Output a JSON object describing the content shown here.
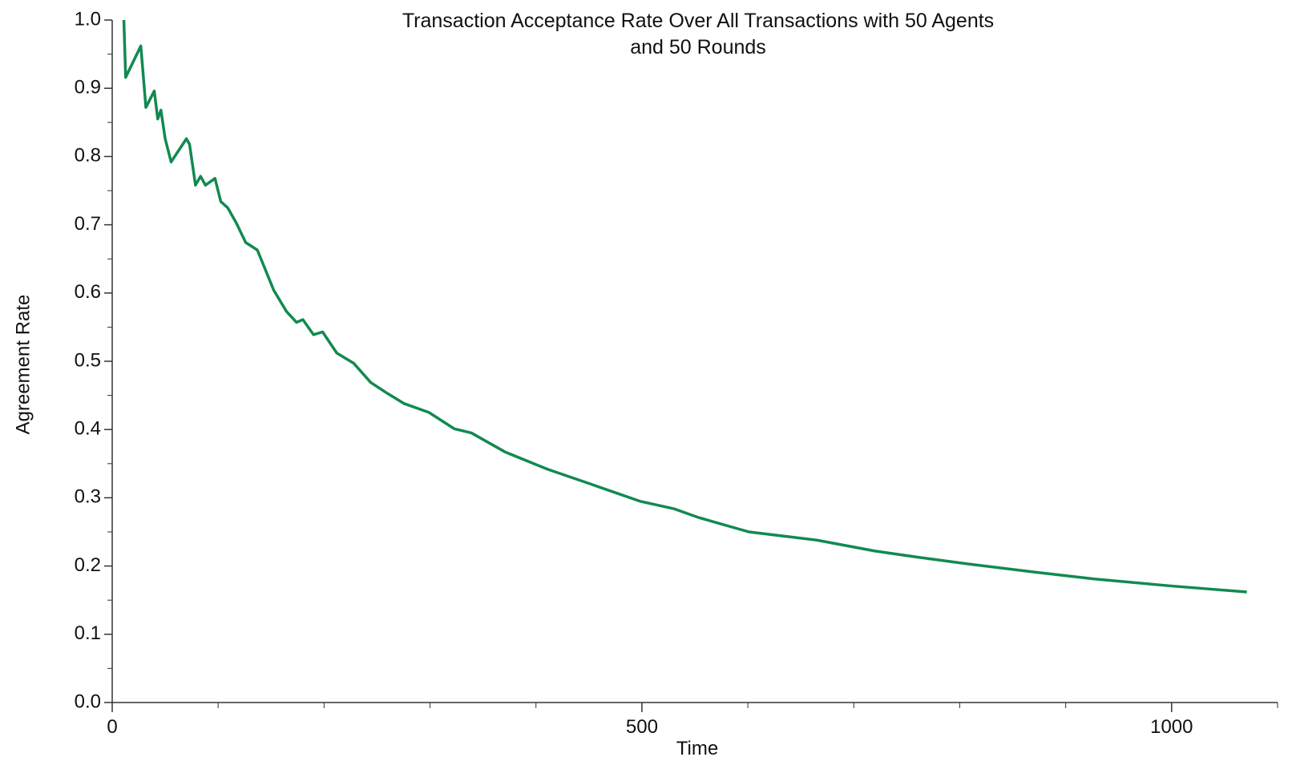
{
  "chart_data": {
    "type": "line",
    "title": "Transaction Acceptance Rate Over All Transactions with 50 Agents and 50 Rounds",
    "x_label": "Time",
    "y_label": "Agreement Rate",
    "xlim": [
      0,
      1100
    ],
    "xticks": [
      0,
      500,
      1000
    ],
    "ylim": [
      0,
      1
    ],
    "yticks": [
      {
        "value": 0,
        "label": "0.0"
      },
      0.1,
      0.2,
      0.3,
      0.4,
      0.5,
      0.6,
      0.7,
      0.8,
      0.9,
      {
        "value": 1,
        "label": "1.0"
      }
    ],
    "grid": false,
    "series": [
      {
        "name": "Agreement Rate",
        "color": "#118a50",
        "x": [
          11,
          12.7,
          27,
          31.8,
          39.7,
          43,
          46,
          50,
          55.6,
          70,
          73,
          78.6,
          83.4,
          88,
          97,
          102.5,
          109,
          117,
          126,
          137,
          152.5,
          164.5,
          174,
          180,
          190,
          198.6,
          212,
          228,
          244,
          259.7,
          275.6,
          299,
          323,
          339,
          371,
          410.6,
          450,
          498,
          530,
          553.6,
          601,
          633,
          665,
          720,
          760,
          807.8,
          871,
          927,
          998,
          1038,
          1071
        ],
        "values": [
          1.0,
          0.916,
          0.962,
          0.872,
          0.896,
          0.855,
          0.868,
          0.826,
          0.792,
          0.826,
          0.818,
          0.758,
          0.771,
          0.758,
          0.768,
          0.734,
          0.725,
          0.703,
          0.674,
          0.663,
          0.604,
          0.573,
          0.557,
          0.561,
          0.539,
          0.543,
          0.512,
          0.497,
          0.469,
          0.453,
          0.438,
          0.425,
          0.401,
          0.395,
          0.367,
          0.342,
          0.321,
          0.295,
          0.284,
          0.271,
          0.25,
          0.244,
          0.238,
          0.222,
          0.213,
          0.203,
          0.191,
          0.181,
          0.171,
          0.166,
          0.162
        ]
      }
    ]
  }
}
